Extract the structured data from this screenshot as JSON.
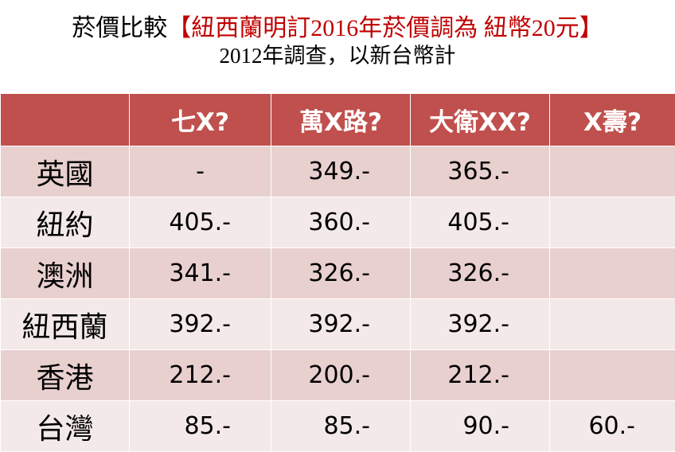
{
  "header": {
    "title": "菸價比較",
    "highlight": "【紐西蘭明訂2016年菸價調為 紐幣20元】",
    "subtitle": "2012年調查，以新台幣計"
  },
  "table": {
    "columns": [
      "七X?",
      "萬X路?",
      "大衛XX?",
      "X壽?"
    ],
    "rows": [
      {
        "label": "英國",
        "values": [
          "-",
          "349.-",
          "365.-"
        ]
      },
      {
        "label": "紐約",
        "values": [
          "405.-",
          "360.-",
          "405.-"
        ]
      },
      {
        "label": "澳洲",
        "values": [
          "341.-",
          "326.-",
          "326.-"
        ]
      },
      {
        "label": "紐西蘭",
        "values": [
          "392.-",
          "392.-",
          "392.-"
        ]
      },
      {
        "label": "香港",
        "values": [
          "212.-",
          "200.-",
          "212.-"
        ]
      },
      {
        "label": "台灣",
        "values": [
          "85.-",
          "85.-",
          "90.-",
          "60.-"
        ]
      }
    ]
  }
}
